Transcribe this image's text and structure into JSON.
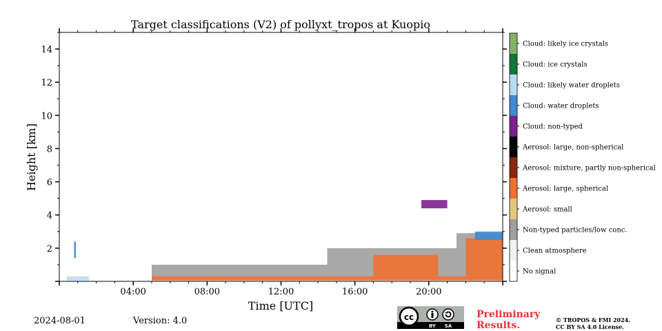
{
  "chart_data": {
    "type": "heatmap",
    "title": "Target classifications (V2) of pollyxt_tropos at Kuopio",
    "xlabel": "Time [UTC]",
    "ylabel": "Height [km]",
    "xlim": [
      0,
      24
    ],
    "ylim": [
      0,
      15
    ],
    "xticks": [
      {
        "value": 4,
        "label": "04:00"
      },
      {
        "value": 8,
        "label": "08:00"
      },
      {
        "value": 12,
        "label": "12:00"
      },
      {
        "value": 16,
        "label": "16:00"
      },
      {
        "value": 20,
        "label": "20:00"
      }
    ],
    "yticks": [
      {
        "value": 2,
        "label": "2"
      },
      {
        "value": 4,
        "label": "4"
      },
      {
        "value": 6,
        "label": "6"
      },
      {
        "value": 8,
        "label": "8"
      },
      {
        "value": 10,
        "label": "10"
      },
      {
        "value": 12,
        "label": "12"
      },
      {
        "value": 14,
        "label": "14"
      }
    ],
    "grid": false,
    "classes": [
      {
        "name": "No signal",
        "color": "#ffffff"
      },
      {
        "name": "Clean atmosphere",
        "color": "#f2f2f2"
      },
      {
        "name": "Non-typed particles/low conc.",
        "color": "#a0a0a0"
      },
      {
        "name": "Aerosol: small",
        "color": "#e5c77a"
      },
      {
        "name": "Aerosol: large, spherical",
        "color": "#ef7030"
      },
      {
        "name": "Aerosol: mixture, partly non-spherical",
        "color": "#8a2808"
      },
      {
        "name": "Aerosol: large, non-spherical",
        "color": "#050505"
      },
      {
        "name": "Cloud: non-typed",
        "color": "#7e1f90"
      },
      {
        "name": "Cloud: water droplets",
        "color": "#3f8ad0"
      },
      {
        "name": "Cloud: likely water droplets",
        "color": "#b9dcf5"
      },
      {
        "name": "Cloud: ice crystals",
        "color": "#12773a"
      },
      {
        "name": "Cloud: likely ice crystals",
        "color": "#86b266"
      }
    ],
    "regions": [
      {
        "class": "Non-typed particles/low conc.",
        "t0": 5.0,
        "t1": 24.0,
        "h0": 0.1,
        "h1": 1.0
      },
      {
        "class": "Non-typed particles/low conc.",
        "t0": 14.5,
        "t1": 24.0,
        "h0": 1.0,
        "h1": 2.0
      },
      {
        "class": "Non-typed particles/low conc.",
        "t0": 21.5,
        "t1": 24.0,
        "h0": 2.0,
        "h1": 2.9
      },
      {
        "class": "Aerosol: large, spherical",
        "t0": 5.0,
        "t1": 24.0,
        "h0": 0.05,
        "h1": 0.3
      },
      {
        "class": "Aerosol: large, spherical",
        "t0": 17.0,
        "t1": 20.5,
        "h0": 0.3,
        "h1": 1.6
      },
      {
        "class": "Aerosol: large, spherical",
        "t0": 22.0,
        "t1": 24.0,
        "h0": 0.3,
        "h1": 2.6
      },
      {
        "class": "Cloud: likely water droplets",
        "t0": 0.4,
        "t1": 1.6,
        "h0": 0.05,
        "h1": 0.3
      },
      {
        "class": "Cloud: water droplets",
        "t0": 0.8,
        "t1": 0.9,
        "h0": 1.4,
        "h1": 2.4
      },
      {
        "class": "Cloud: water droplets",
        "t0": 22.5,
        "t1": 24.0,
        "h0": 2.5,
        "h1": 3.0
      },
      {
        "class": "Cloud: non-typed",
        "t0": 19.6,
        "t1": 21.0,
        "h0": 4.4,
        "h1": 4.9
      }
    ]
  },
  "footer": {
    "date": "2024-08-01",
    "version": "Version: 4.0",
    "preliminary_line1": "Preliminary",
    "preliminary_line2": "Results.",
    "copyright_line1": "© TROPOS & FMI 2024.",
    "copyright_line2": "CC BY SA 4.0 License.",
    "cc_label": "cc",
    "by_label": "BY",
    "sa_label": "SA"
  }
}
